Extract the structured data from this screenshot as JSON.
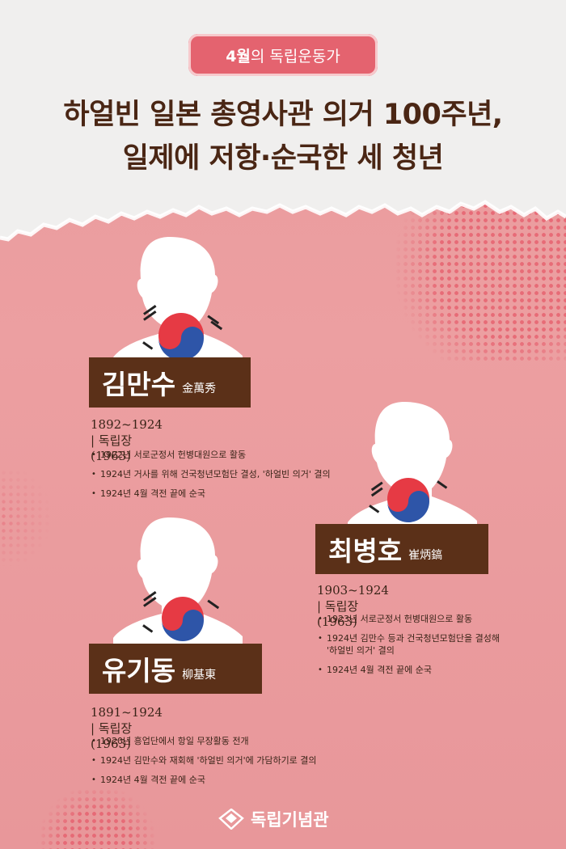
{
  "badge": {
    "strong": "4월",
    "rest": "의 독립운동가"
  },
  "headline": {
    "line1": "하얼빈 일본 총영사관 의거 100주년,",
    "line2": "일제에 저항·순국한 세 청년"
  },
  "persons": [
    {
      "name_kr": "김만수",
      "name_hanja": "金萬秀",
      "dates": "1892~1924 | 독립장(1963)",
      "facts": [
        "1922년 서로군정서 헌병대원으로 활동",
        "1924년 거사를 위해 건국청년모험단 결성, '하얼빈 의거' 결의",
        "1924년 4월 격전 끝에 순국"
      ]
    },
    {
      "name_kr": "최병호",
      "name_hanja": "崔炳鎬",
      "dates": "1903~1924 | 독립장(1963)",
      "facts": [
        "1923년 서로군정서 헌병대원으로 활동",
        "1924년 김만수 등과 건국청년모험단을 결성해",
        "'하얼빈 의거' 결의",
        "1924년 4월 격전 끝에 순국"
      ]
    },
    {
      "name_kr": "유기동",
      "name_hanja": "柳基東",
      "dates": "1891~1924 | 독립장(1963)",
      "facts": [
        "1920년 흥업단에서 항일 무장활동 전개",
        "1924년 김만수와 재회해 '하얼빈 의거'에 가담하기로 결의",
        "1924년 4월 격전 끝에 순국"
      ]
    }
  ],
  "footer": {
    "logo_text": "독립기념관",
    "logo_icon": "independence-hall-emblem-icon"
  },
  "colors": {
    "background": "#eb9a9c",
    "paper": "#f0efee",
    "badge": "#e4636f",
    "headline": "#4a2614",
    "nameplate": "#5b3018"
  }
}
